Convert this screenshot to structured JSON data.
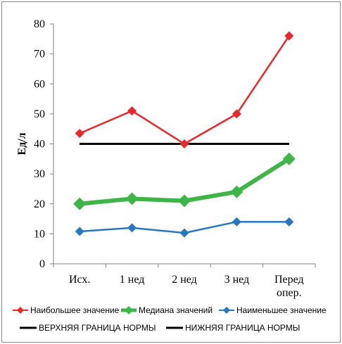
{
  "chart_data": {
    "type": "line",
    "categories": [
      "Исх.",
      "1 нед",
      "2 нед",
      "3 нед",
      "Перед опер."
    ],
    "ylabel": "Ед/л",
    "xlabel": "",
    "ylim": [
      0,
      80
    ],
    "yticks": [
      0,
      10,
      20,
      30,
      40,
      50,
      60,
      70,
      80
    ],
    "grid": false,
    "legend_position": "bottom",
    "series": [
      {
        "name": "Наибольшее значение",
        "values": [
          43.5,
          51,
          40,
          50,
          76
        ],
        "color": "#e8282b",
        "marker": "diamond"
      },
      {
        "name": "Медиана значений",
        "values": [
          20,
          21.7,
          21,
          24,
          35
        ],
        "color": "#3fb548",
        "marker": "diamond"
      },
      {
        "name": "Наименьшее значение",
        "values": [
          10.8,
          12,
          10.3,
          14,
          14
        ],
        "color": "#2777c0",
        "marker": "diamond"
      },
      {
        "name": "ВЕРХНЯЯ ГРАНИЦА НОРМЫ",
        "values": [
          40,
          40,
          40,
          40,
          40
        ],
        "color": "#000000",
        "marker": "none"
      },
      {
        "name": "НИЖНЯЯ ГРАНИЦА НОРМЫ",
        "values": [
          40,
          40,
          40,
          40,
          40
        ],
        "color": "#000000",
        "marker": "none"
      }
    ]
  }
}
